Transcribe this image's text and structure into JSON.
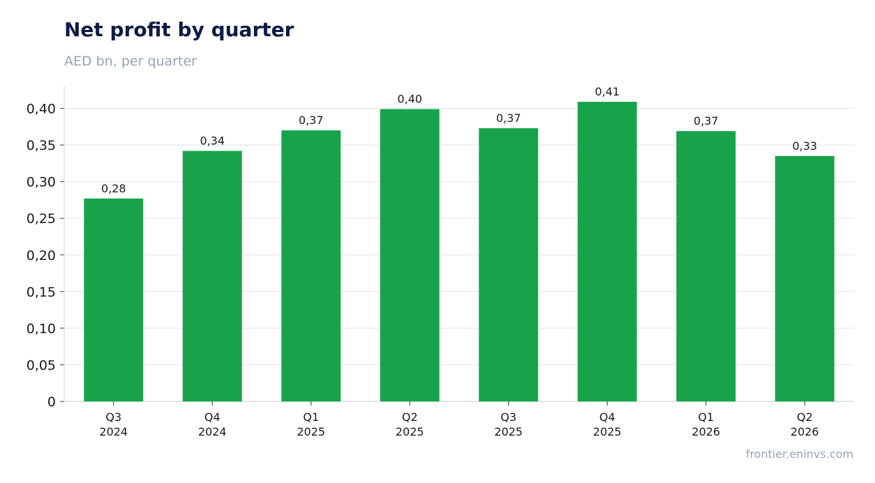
{
  "header": {
    "title": "Net profit by quarter",
    "subtitle": "AED bn, per quarter"
  },
  "footer": {
    "source": "frontier.eninvs.com"
  },
  "chart_data": {
    "type": "bar",
    "title": "Net profit by quarter",
    "subtitle": "AED bn, per quarter",
    "xlabel": "",
    "ylabel": "",
    "categories": [
      [
        "Q3",
        "2024"
      ],
      [
        "Q4",
        "2024"
      ],
      [
        "Q1",
        "2025"
      ],
      [
        "Q2",
        "2025"
      ],
      [
        "Q3",
        "2025"
      ],
      [
        "Q4",
        "2025"
      ],
      [
        "Q1",
        "2026"
      ],
      [
        "Q2",
        "2026"
      ]
    ],
    "values": [
      0.277,
      0.342,
      0.37,
      0.399,
      0.373,
      0.409,
      0.369,
      0.335
    ],
    "data_labels": [
      "0,28",
      "0,34",
      "0,37",
      "0,40",
      "0,37",
      "0,41",
      "0,37",
      "0,33"
    ],
    "ylim": [
      0,
      0.43
    ],
    "yticks": [
      0,
      0.05,
      0.1,
      0.15,
      0.2,
      0.25,
      0.3,
      0.35,
      0.4
    ],
    "ytick_labels": [
      "0",
      "0,05",
      "0,10",
      "0,15",
      "0,20",
      "0,25",
      "0,30",
      "0,35",
      "0,40"
    ],
    "grid": true,
    "legend": "none",
    "colors": {
      "bar": "#18a34a",
      "grid": "#e5e7eb",
      "axis": "#d1d5db"
    }
  }
}
